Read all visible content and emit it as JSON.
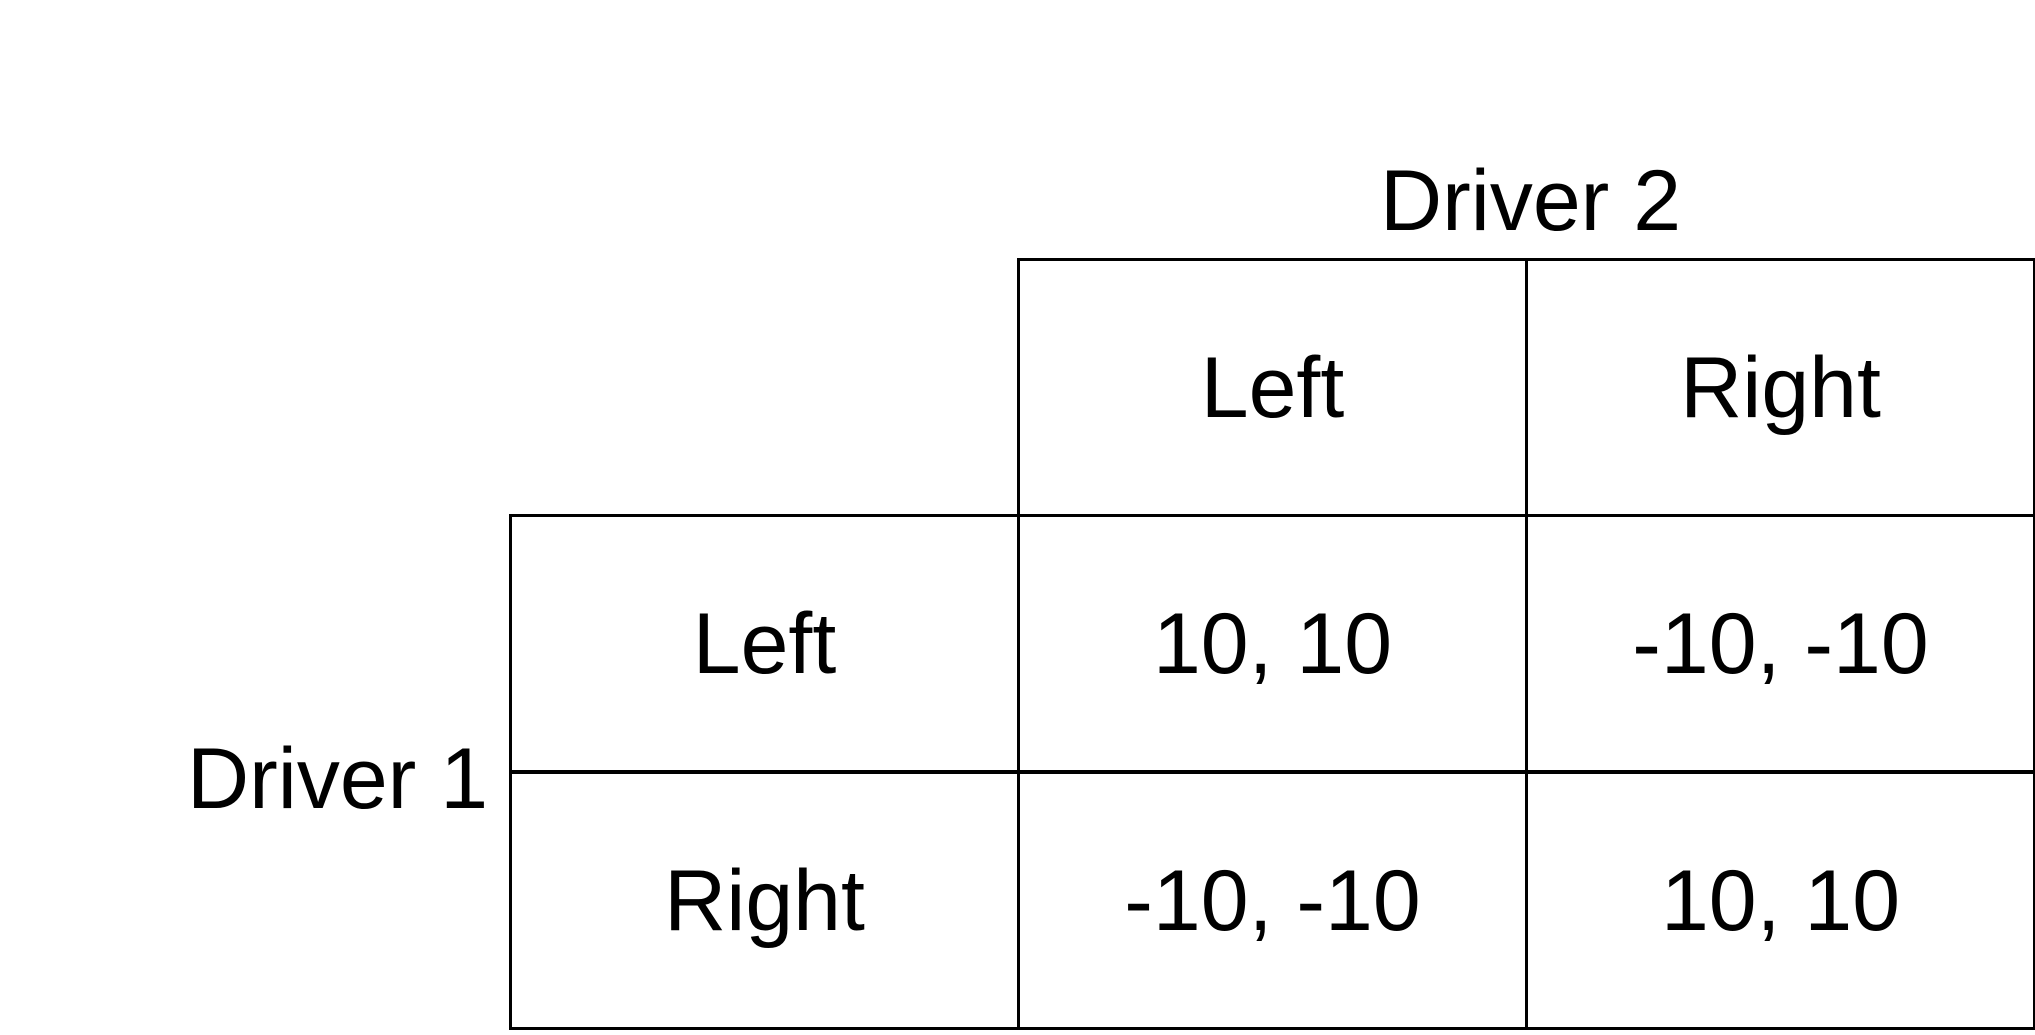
{
  "players": {
    "row_player": "Driver 1",
    "column_player": "Driver 2"
  },
  "strategies": {
    "columns": [
      "Left",
      "Right"
    ],
    "rows": [
      "Left",
      "Right"
    ]
  },
  "payoffs": [
    [
      "10, 10",
      "-10, -10"
    ],
    [
      "-10, -10",
      "10, 10"
    ]
  ]
}
